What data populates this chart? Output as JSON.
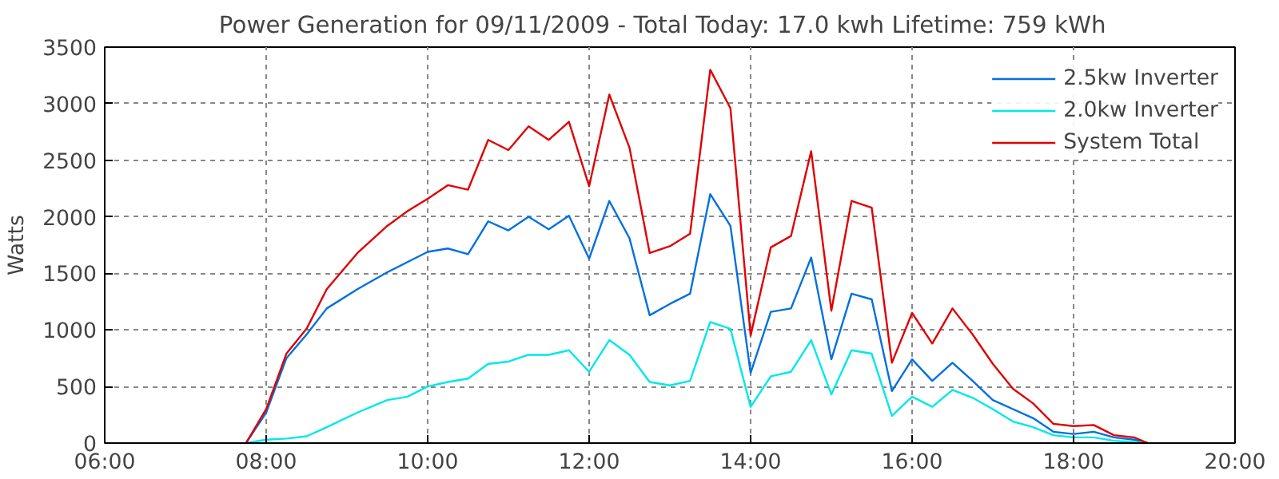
{
  "chart_data": {
    "type": "line",
    "title": "Power Generation for 09/11/2009 - Total Today: 17.0 kwh   Lifetime: 759 kWh",
    "ylabel": "Watts",
    "x": [
      7.75,
      8.0,
      8.25,
      8.5,
      8.75,
      9.13,
      9.5,
      9.75,
      10.0,
      10.25,
      10.5,
      10.75,
      11.0,
      11.25,
      11.5,
      11.75,
      12.0,
      12.25,
      12.5,
      12.75,
      13.0,
      13.25,
      13.5,
      13.75,
      14.0,
      14.25,
      14.5,
      14.75,
      15.0,
      15.25,
      15.5,
      15.75,
      16.0,
      16.25,
      16.5,
      16.75,
      17.0,
      17.25,
      17.5,
      17.75,
      18.0,
      18.25,
      18.5,
      18.75,
      18.92
    ],
    "series": [
      {
        "name": "2.5kw Inverter",
        "color": "#0070e0",
        "values": [
          0,
          270,
          750,
          960,
          1190,
          1360,
          1510,
          1600,
          1690,
          1720,
          1670,
          1960,
          1880,
          2000,
          1890,
          2010,
          1630,
          2140,
          1810,
          1130,
          1230,
          1320,
          2200,
          1920,
          620,
          1160,
          1190,
          1640,
          740,
          1320,
          1270,
          460,
          740,
          550,
          710,
          550,
          380,
          300,
          220,
          100,
          80,
          100,
          50,
          30,
          0
        ]
      },
      {
        "name": "2.0kw Inverter",
        "color": "#00e8e8",
        "values": [
          0,
          30,
          40,
          60,
          140,
          270,
          380,
          410,
          500,
          540,
          570,
          700,
          720,
          780,
          780,
          820,
          630,
          910,
          780,
          540,
          510,
          550,
          1070,
          1010,
          320,
          590,
          630,
          910,
          430,
          820,
          790,
          240,
          410,
          320,
          470,
          400,
          300,
          190,
          140,
          70,
          50,
          50,
          20,
          10,
          0
        ]
      },
      {
        "name": "System Total",
        "color": "#e00000",
        "values": [
          0,
          300,
          790,
          1010,
          1360,
          1680,
          1920,
          2050,
          2160,
          2280,
          2240,
          2680,
          2590,
          2800,
          2680,
          2840,
          2270,
          3080,
          2610,
          1680,
          1740,
          1850,
          3300,
          2960,
          950,
          1730,
          1830,
          2580,
          1170,
          2140,
          2080,
          710,
          1150,
          880,
          1190,
          960,
          700,
          480,
          350,
          170,
          150,
          160,
          70,
          50,
          0
        ]
      }
    ],
    "xlim": [
      6,
      20
    ],
    "xticks": [
      {
        "value": 6,
        "label": "06:00"
      },
      {
        "value": 8,
        "label": "08:00"
      },
      {
        "value": 10,
        "label": "10:00"
      },
      {
        "value": 12,
        "label": "12:00"
      },
      {
        "value": 14,
        "label": "14:00"
      },
      {
        "value": 16,
        "label": "16:00"
      },
      {
        "value": 18,
        "label": "18:00"
      },
      {
        "value": 20,
        "label": "20:00"
      }
    ],
    "ylim": [
      0,
      3500
    ],
    "yticks": [
      0,
      500,
      1000,
      1500,
      2000,
      2500,
      3000,
      3500
    ],
    "grid": true,
    "legend": "top right",
    "line_style": "solid",
    "marker": "none"
  }
}
